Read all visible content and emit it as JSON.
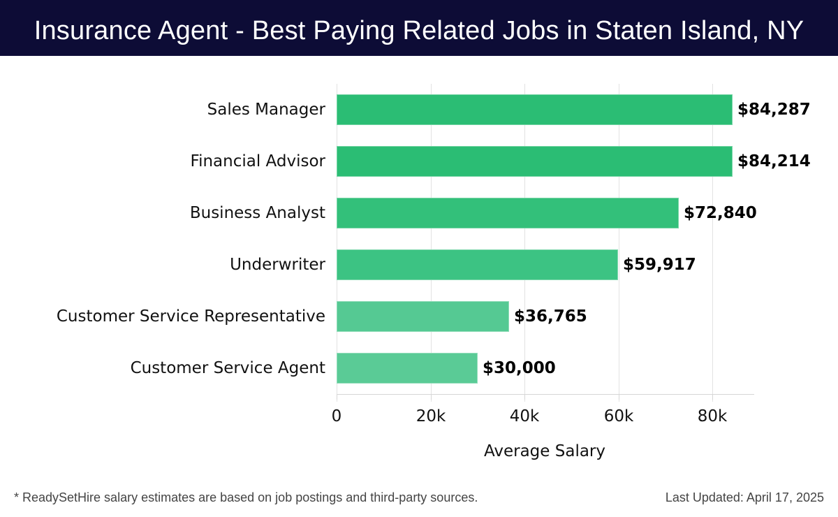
{
  "header": {
    "title": "Insurance Agent - Best Paying Related Jobs in Staten Island, NY"
  },
  "chart_data": {
    "type": "bar",
    "orientation": "horizontal",
    "title": "Insurance Agent - Best Paying Related Jobs in Staten Island, NY",
    "categories": [
      "Sales Manager",
      "Financial Advisor",
      "Business Analyst",
      "Underwriter",
      "Customer Service Representative",
      "Customer Service Agent"
    ],
    "values": [
      84287,
      84214,
      72840,
      59917,
      36765,
      30000
    ],
    "value_labels": [
      "$84,287",
      "$84,214",
      "$72,840",
      "$59,917",
      "$36,765",
      "$30,000"
    ],
    "bar_colors": [
      "#2bbd74",
      "#2bbd74",
      "#33c07a",
      "#3cc383",
      "#55c993",
      "#5acb96"
    ],
    "xlabel": "Average Salary",
    "ylabel": "",
    "xticks": [
      "0",
      "20k",
      "40k",
      "60k",
      "80k"
    ],
    "xtick_values": [
      0,
      20000,
      40000,
      60000,
      80000
    ],
    "xlim": [
      0,
      88700
    ],
    "grid": "vertical",
    "legend": "none"
  },
  "footer": {
    "note": "* ReadySetHire salary estimates are based on job postings and third-party sources.",
    "updated": "Last Updated: April 17, 2025"
  }
}
